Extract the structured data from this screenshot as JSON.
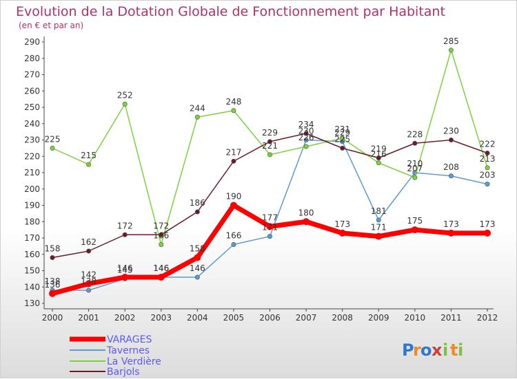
{
  "chart_data": {
    "type": "line",
    "title": "Evolution de la Dotation Globale de Fonctionnement par Habitant",
    "subtitle": "(en € et par an)",
    "xlabel": "",
    "ylabel": "",
    "x": [
      "2000",
      "2001",
      "2002",
      "2003",
      "2004",
      "2005",
      "2006",
      "2007",
      "2008",
      "2009",
      "2010",
      "2011",
      "2012"
    ],
    "ylim": [
      130,
      290
    ],
    "yticks": [
      130,
      140,
      150,
      160,
      170,
      180,
      190,
      200,
      210,
      220,
      230,
      240,
      250,
      260,
      270,
      280,
      290
    ],
    "grid": false,
    "legend_position": "bottom-left",
    "series": [
      {
        "name": "Tavernes",
        "color": "#5b9bd5",
        "values": [
          138,
          138,
          145,
          146,
          146,
          166,
          171,
          230,
          229,
          181,
          210,
          208,
          203
        ]
      },
      {
        "name": "La Verdière",
        "color": "#7cd23c",
        "values": [
          225,
          215,
          252,
          166,
          244,
          248,
          221,
          226,
          231,
          216,
          207,
          285,
          213
        ]
      },
      {
        "name": "Barjols",
        "color": "#6b1a2a",
        "values": [
          158,
          162,
          172,
          172,
          186,
          217,
          229,
          234,
          225,
          219,
          228,
          230,
          222
        ]
      },
      {
        "name": "VARAGES",
        "color": "#ff0000",
        "values": [
          136,
          142,
          146,
          146,
          158,
          190,
          177,
          180,
          173,
          171,
          175,
          173,
          173
        ]
      }
    ],
    "legend": [
      "VARAGES",
      "Tavernes",
      "La Verdière",
      "Barjols"
    ]
  },
  "branding": {
    "logo_text": "Proxiti",
    "letters": [
      "P",
      "r",
      "o",
      "x",
      "i",
      "t",
      "i"
    ],
    "letter_colors": [
      "#2f78d2",
      "#f08a24",
      "#2f78d2",
      "#d23c3c",
      "#7cc242",
      "#f08a24",
      "#7cc242"
    ]
  }
}
